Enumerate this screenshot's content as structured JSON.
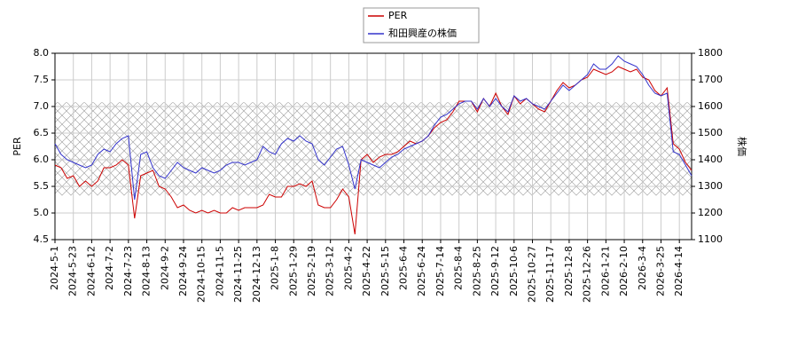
{
  "chart_data": {
    "type": "line",
    "categories": [
      "2024-5-1",
      null,
      null,
      "2024-5-23",
      null,
      null,
      "2024-6-12",
      null,
      null,
      "2024-7-2",
      null,
      null,
      "2024-7-23",
      null,
      null,
      "2024-8-13",
      null,
      null,
      "2024-9-2",
      null,
      null,
      "2024-9-24",
      null,
      null,
      "2024-10-15",
      null,
      null,
      "2024-11-5",
      null,
      null,
      "2024-11-25",
      null,
      null,
      "2024-12-13",
      null,
      null,
      "2025-1-8",
      null,
      null,
      "2025-1-29",
      null,
      null,
      "2025-2-19",
      null,
      null,
      "2025-3-12",
      null,
      null,
      "2025-4-2",
      null,
      null,
      "2025-4-22",
      null,
      null,
      "2025-5-15",
      null,
      null,
      "2025-6-4",
      null,
      null,
      "2025-6-24",
      null,
      null,
      "2025-7-14",
      null,
      null,
      "2025-8-4",
      null,
      null,
      "2025-8-25",
      null,
      null,
      "2025-9-12",
      null,
      null,
      "2025-10-6",
      null,
      null,
      "2025-10-27",
      null,
      null,
      "2025-11-17",
      null,
      null,
      "2025-12-8",
      null,
      null,
      "2025-12-26",
      null,
      null,
      "2026-1-21",
      null,
      null,
      "2026-2-10",
      null,
      null,
      "2026-3-4",
      null,
      null,
      "2026-3-25",
      null,
      null,
      "2026-4-14",
      null,
      null
    ],
    "series": [
      {
        "name": "PER",
        "color": "#cc0000",
        "values": [
          5.9,
          5.85,
          5.65,
          5.7,
          5.5,
          5.6,
          5.5,
          5.6,
          5.85,
          5.85,
          5.9,
          6.0,
          5.9,
          4.9,
          5.7,
          5.75,
          5.8,
          5.5,
          5.45,
          5.3,
          5.1,
          5.15,
          5.05,
          5.0,
          5.05,
          5.0,
          5.05,
          5.0,
          5.0,
          5.1,
          5.05,
          5.1,
          5.1,
          5.1,
          5.15,
          5.35,
          5.3,
          5.3,
          5.5,
          5.5,
          5.55,
          5.5,
          5.6,
          5.15,
          5.1,
          5.1,
          5.25,
          5.45,
          5.3,
          4.6,
          6.0,
          6.1,
          5.95,
          6.05,
          6.1,
          6.1,
          6.15,
          6.25,
          6.35,
          6.3,
          6.35,
          6.45,
          6.6,
          6.7,
          6.75,
          6.9,
          7.1,
          7.1,
          7.1,
          6.9,
          7.15,
          7.0,
          7.25,
          7.0,
          6.85,
          7.2,
          7.05,
          7.15,
          7.05,
          6.95,
          6.9,
          7.1,
          7.3,
          7.45,
          7.35,
          7.4,
          7.5,
          7.55,
          7.7,
          7.65,
          7.6,
          7.65,
          7.75,
          7.7,
          7.65,
          7.7,
          7.55,
          7.5,
          7.3,
          7.2,
          7.35,
          6.3,
          6.2,
          5.95,
          5.8
        ]
      },
      {
        "name": "和田興産の株価",
        "color": "#3333cc",
        "axis": "y2",
        "values": [
          1460,
          1420,
          1400,
          1390,
          1380,
          1370,
          1380,
          1420,
          1440,
          1430,
          1460,
          1480,
          1490,
          1250,
          1420,
          1430,
          1370,
          1340,
          1330,
          1360,
          1390,
          1370,
          1360,
          1350,
          1370,
          1360,
          1350,
          1360,
          1380,
          1390,
          1390,
          1380,
          1390,
          1400,
          1450,
          1430,
          1420,
          1460,
          1480,
          1470,
          1490,
          1470,
          1460,
          1400,
          1380,
          1410,
          1440,
          1450,
          1380,
          1290,
          1400,
          1390,
          1380,
          1370,
          1390,
          1410,
          1420,
          1440,
          1450,
          1460,
          1470,
          1490,
          1530,
          1560,
          1570,
          1590,
          1610,
          1620,
          1620,
          1590,
          1630,
          1600,
          1630,
          1600,
          1580,
          1640,
          1620,
          1630,
          1610,
          1600,
          1590,
          1620,
          1650,
          1680,
          1660,
          1680,
          1700,
          1720,
          1760,
          1740,
          1740,
          1760,
          1790,
          1770,
          1760,
          1750,
          1720,
          1680,
          1650,
          1640,
          1650,
          1430,
          1420,
          1380,
          1340
        ]
      }
    ],
    "y_label": "PER",
    "y2_label": "株価",
    "ylim": [
      4.5,
      8.0
    ],
    "yticks": [
      {
        "value": 4.5,
        "label": "4.5"
      },
      {
        "value": 5,
        "label": "5.0"
      },
      {
        "value": 5.5,
        "label": "5.5"
      },
      {
        "value": 6,
        "label": "6.0"
      },
      {
        "value": 6.5,
        "label": "6.5"
      },
      {
        "value": 7,
        "label": "7.0"
      },
      {
        "value": 7.5,
        "label": "7.5"
      },
      {
        "value": 8,
        "label": "8.0"
      }
    ],
    "y2lim": [
      1100,
      1800
    ],
    "y2ticks": [
      1100,
      1200,
      1300,
      1400,
      1500,
      1600,
      1700,
      1800
    ],
    "shaded_range": [
      5.33,
      7.08
    ],
    "grid": true,
    "legend": "top"
  }
}
